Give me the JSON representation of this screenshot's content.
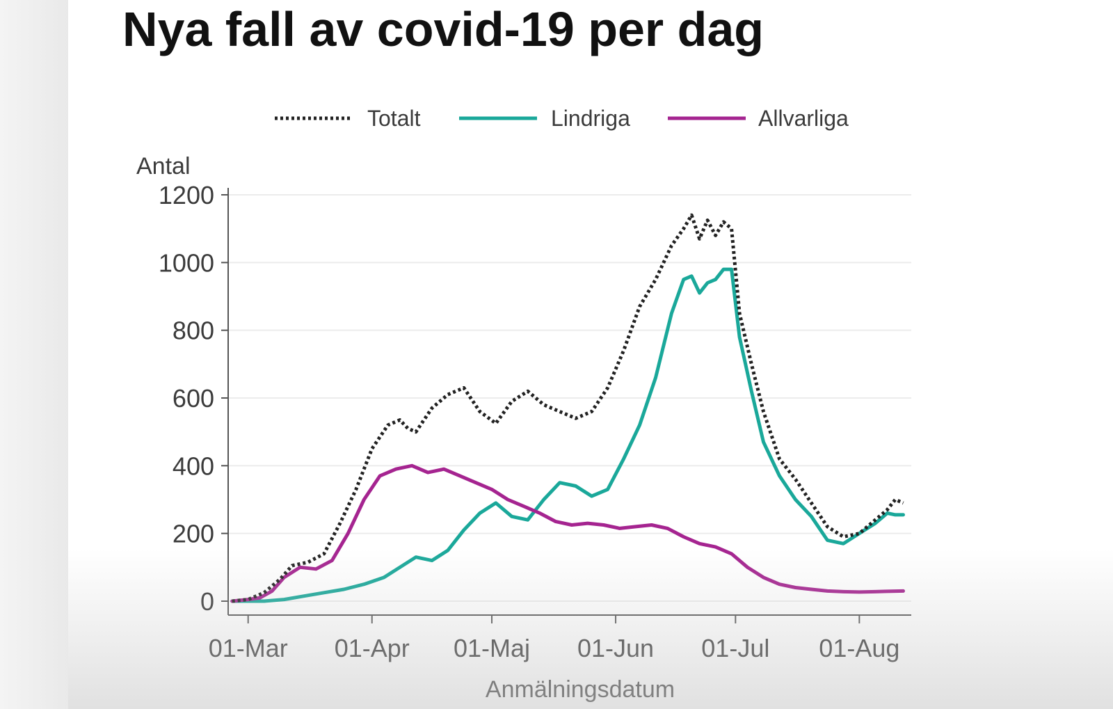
{
  "title": "Nya fall av covid-19 per dag",
  "chart_data": {
    "type": "line",
    "title": "Nya fall av covid-19 per dag",
    "ylabel": "Antal",
    "xlabel": "Anmälningsdatum",
    "ylim": [
      0,
      1200
    ],
    "yticks": [
      "0",
      "200",
      "400",
      "600",
      "800",
      "1000",
      "1200"
    ],
    "xlim": [
      "2020-02-25",
      "2020-08-14"
    ],
    "xticks": [
      {
        "date": "2020-03-01",
        "label": "01-Mar"
      },
      {
        "date": "2020-04-01",
        "label": "01-Apr"
      },
      {
        "date": "2020-05-01",
        "label": "01-Maj"
      },
      {
        "date": "2020-06-01",
        "label": "01-Jun"
      },
      {
        "date": "2020-07-01",
        "label": "01-Jul"
      },
      {
        "date": "2020-08-01",
        "label": "01-Aug"
      }
    ],
    "grid": true,
    "legend_position": "top",
    "series": [
      {
        "name": "Totalt",
        "color": "#222222",
        "style": "dotted",
        "x": [
          "2020-02-26",
          "2020-03-01",
          "2020-03-05",
          "2020-03-09",
          "2020-03-12",
          "2020-03-16",
          "2020-03-20",
          "2020-03-24",
          "2020-03-28",
          "2020-04-01",
          "2020-04-05",
          "2020-04-08",
          "2020-04-10",
          "2020-04-12",
          "2020-04-16",
          "2020-04-20",
          "2020-04-24",
          "2020-04-28",
          "2020-05-02",
          "2020-05-06",
          "2020-05-10",
          "2020-05-14",
          "2020-05-18",
          "2020-05-22",
          "2020-05-26",
          "2020-05-30",
          "2020-06-03",
          "2020-06-07",
          "2020-06-11",
          "2020-06-15",
          "2020-06-18",
          "2020-06-20",
          "2020-06-22",
          "2020-06-24",
          "2020-06-26",
          "2020-06-28",
          "2020-06-30",
          "2020-07-02",
          "2020-07-05",
          "2020-07-08",
          "2020-07-12",
          "2020-07-16",
          "2020-07-20",
          "2020-07-24",
          "2020-07-28",
          "2020-08-01",
          "2020-08-05",
          "2020-08-08",
          "2020-08-10",
          "2020-08-12"
        ],
        "values": [
          0,
          5,
          25,
          65,
          105,
          115,
          140,
          230,
          330,
          450,
          520,
          535,
          510,
          500,
          570,
          610,
          630,
          560,
          525,
          590,
          620,
          580,
          560,
          540,
          560,
          630,
          740,
          870,
          950,
          1050,
          1100,
          1140,
          1070,
          1125,
          1080,
          1120,
          1100,
          850,
          700,
          560,
          420,
          360,
          290,
          220,
          190,
          200,
          240,
          270,
          300,
          290
        ]
      },
      {
        "name": "Lindriga",
        "color": "#1aa89a",
        "style": "solid",
        "x": [
          "2020-02-26",
          "2020-03-01",
          "2020-03-05",
          "2020-03-10",
          "2020-03-15",
          "2020-03-20",
          "2020-03-25",
          "2020-03-30",
          "2020-04-04",
          "2020-04-08",
          "2020-04-12",
          "2020-04-16",
          "2020-04-20",
          "2020-04-24",
          "2020-04-28",
          "2020-05-02",
          "2020-05-06",
          "2020-05-10",
          "2020-05-14",
          "2020-05-18",
          "2020-05-22",
          "2020-05-26",
          "2020-05-30",
          "2020-06-03",
          "2020-06-07",
          "2020-06-11",
          "2020-06-15",
          "2020-06-18",
          "2020-06-20",
          "2020-06-22",
          "2020-06-24",
          "2020-06-26",
          "2020-06-28",
          "2020-06-30",
          "2020-07-02",
          "2020-07-05",
          "2020-07-08",
          "2020-07-12",
          "2020-07-16",
          "2020-07-20",
          "2020-07-24",
          "2020-07-28",
          "2020-08-01",
          "2020-08-05",
          "2020-08-08",
          "2020-08-10",
          "2020-08-12"
        ],
        "values": [
          0,
          0,
          0,
          5,
          15,
          25,
          35,
          50,
          70,
          100,
          130,
          120,
          150,
          210,
          260,
          290,
          250,
          240,
          300,
          350,
          340,
          310,
          330,
          420,
          520,
          660,
          850,
          950,
          960,
          910,
          940,
          950,
          980,
          980,
          780,
          620,
          470,
          370,
          300,
          250,
          180,
          170,
          200,
          230,
          260,
          255,
          255
        ]
      },
      {
        "name": "Allvarliga",
        "color": "#a52490",
        "style": "solid",
        "x": [
          "2020-02-26",
          "2020-03-01",
          "2020-03-04",
          "2020-03-07",
          "2020-03-10",
          "2020-03-14",
          "2020-03-18",
          "2020-03-22",
          "2020-03-26",
          "2020-03-30",
          "2020-04-03",
          "2020-04-07",
          "2020-04-11",
          "2020-04-15",
          "2020-04-19",
          "2020-04-23",
          "2020-04-27",
          "2020-05-01",
          "2020-05-05",
          "2020-05-09",
          "2020-05-13",
          "2020-05-17",
          "2020-05-21",
          "2020-05-25",
          "2020-05-29",
          "2020-06-02",
          "2020-06-06",
          "2020-06-10",
          "2020-06-14",
          "2020-06-18",
          "2020-06-22",
          "2020-06-26",
          "2020-06-30",
          "2020-07-04",
          "2020-07-08",
          "2020-07-12",
          "2020-07-16",
          "2020-07-20",
          "2020-07-24",
          "2020-07-28",
          "2020-08-01",
          "2020-08-05",
          "2020-08-08",
          "2020-08-12"
        ],
        "values": [
          0,
          5,
          10,
          30,
          70,
          100,
          95,
          120,
          200,
          300,
          370,
          390,
          400,
          380,
          390,
          370,
          350,
          330,
          300,
          280,
          260,
          235,
          225,
          230,
          225,
          215,
          220,
          225,
          215,
          190,
          170,
          160,
          140,
          100,
          70,
          50,
          40,
          35,
          30,
          28,
          27,
          28,
          29,
          30
        ]
      }
    ]
  }
}
